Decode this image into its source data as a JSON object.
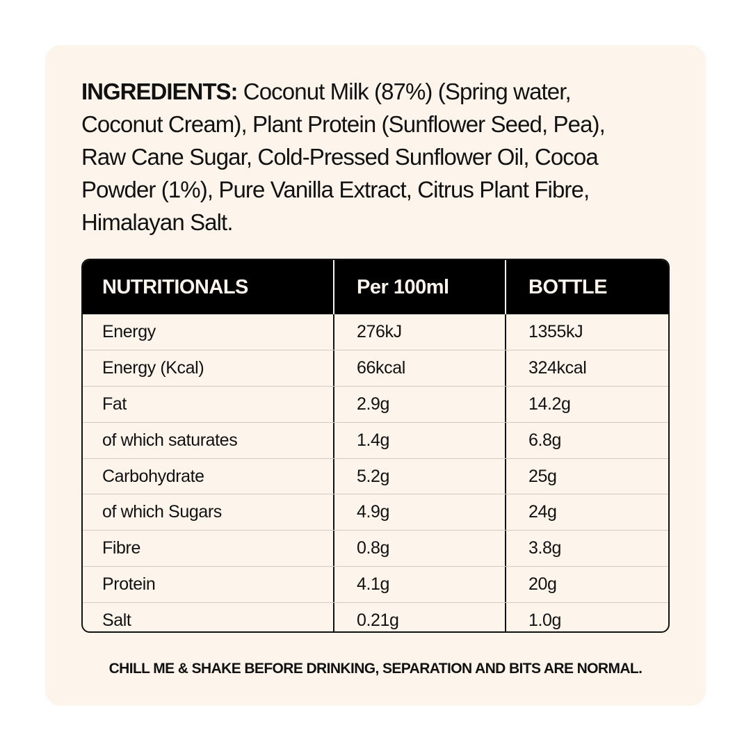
{
  "ingredients": {
    "label": "INGREDIENTS:",
    "lines": [
      "Coconut Milk (87%) (Spring water,",
      "Coconut Cream), Plant Protein (Sunflower Seed, Pea),",
      "Raw Cane Sugar, Cold-Pressed Sunflower Oil, Cocoa",
      "Powder (1%), Pure Vanilla Extract, Citrus Plant Fibre,",
      "Himalayan Salt."
    ]
  },
  "table": {
    "headers": [
      "NUTRITIONALS",
      "Per 100ml",
      "BOTTLE"
    ],
    "rows": [
      [
        "Energy",
        "276kJ",
        "1355kJ"
      ],
      [
        "Energy (Kcal)",
        "66kcal",
        "324kcal"
      ],
      [
        "Fat",
        "2.9g",
        "14.2g"
      ],
      [
        "of which saturates",
        "1.4g",
        "6.8g"
      ],
      [
        "Carbohydrate",
        "5.2g",
        "25g"
      ],
      [
        "of which Sugars",
        "4.9g",
        "24g"
      ],
      [
        "Fibre",
        "0.8g",
        "3.8g"
      ],
      [
        "Protein",
        "4.1g",
        "20g"
      ],
      [
        "Salt",
        "0.21g",
        "1.0g"
      ]
    ]
  },
  "footer": "CHILL ME & SHAKE BEFORE DRINKING, SEPARATION AND BITS ARE NORMAL.",
  "colors": {
    "card": "#fdf5ec",
    "header": "#000000"
  }
}
